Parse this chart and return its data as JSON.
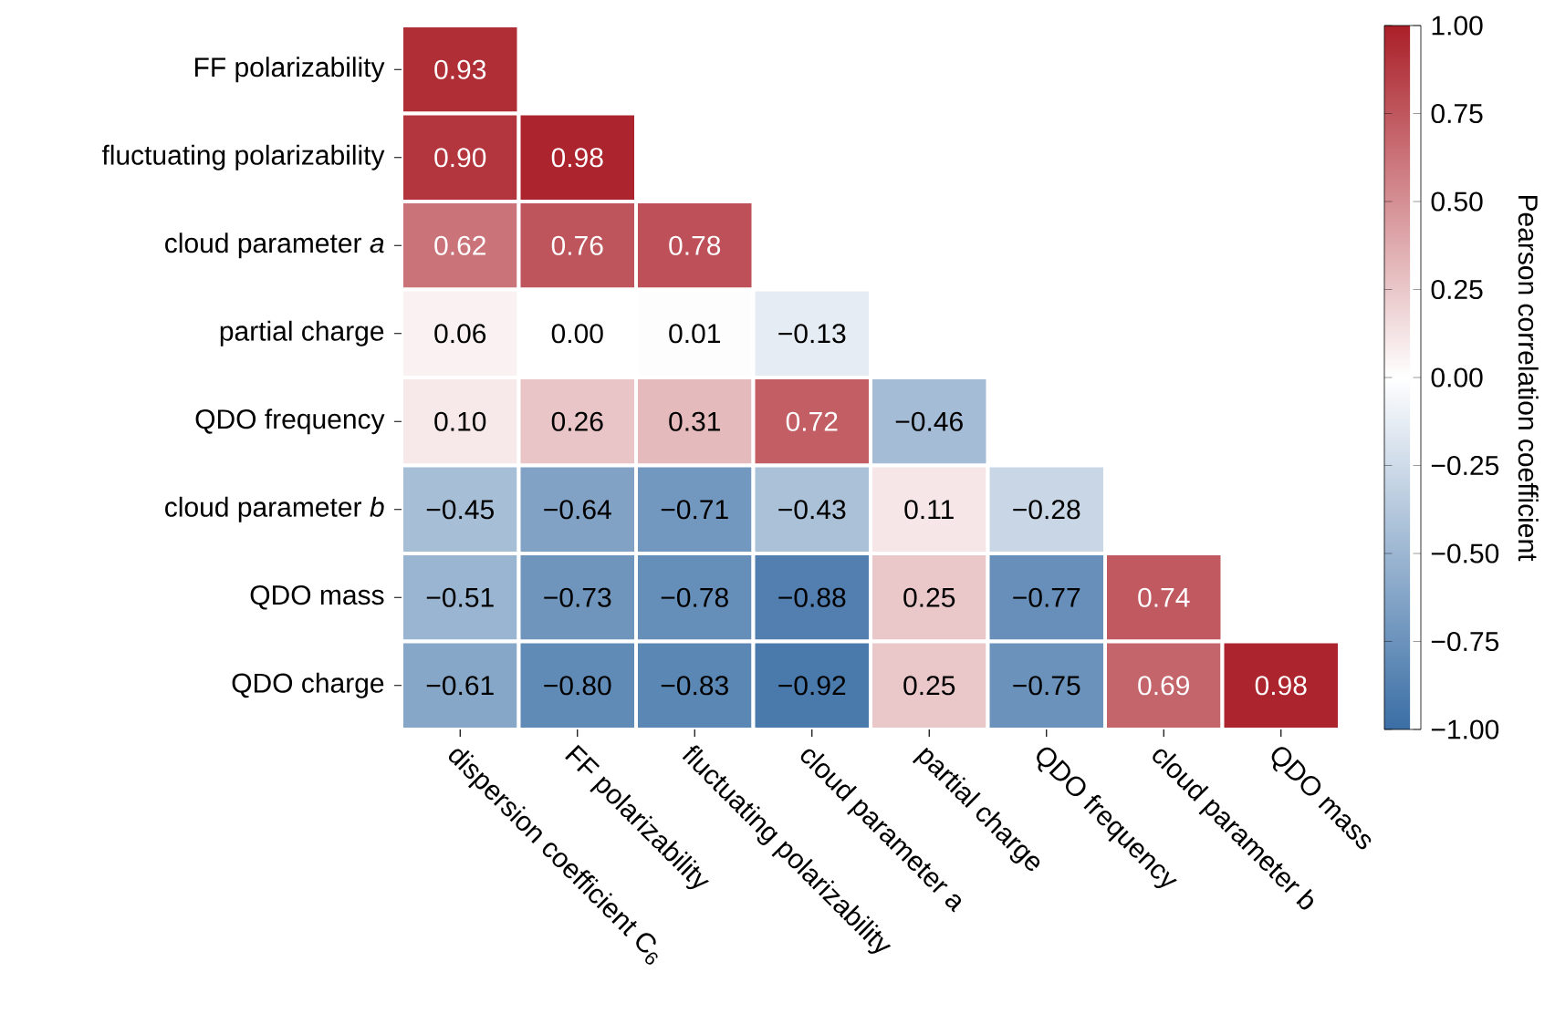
{
  "chart_data": {
    "type": "heatmap",
    "categories": [
      "dispersion coefficient C$_{6}$",
      "FF polarizability",
      "fluctuating polarizability",
      "cloud parameter a",
      "partial charge",
      "QDO frequency",
      "cloud parameter b",
      "QDO mass"
    ],
    "y_categories": [
      "FF polarizability",
      "fluctuating polarizability",
      "cloud parameter *a*",
      "partial charge",
      "QDO frequency",
      "cloud parameter *b*",
      "QDO mass",
      "QDO charge"
    ],
    "cells": [
      [
        0.93,
        null,
        null,
        null,
        null,
        null,
        null,
        null
      ],
      [
        0.9,
        0.98,
        null,
        null,
        null,
        null,
        null,
        null
      ],
      [
        0.62,
        0.76,
        0.78,
        null,
        null,
        null,
        null,
        null
      ],
      [
        0.06,
        0.0,
        0.01,
        -0.13,
        null,
        null,
        null,
        null
      ],
      [
        0.1,
        0.26,
        0.31,
        0.72,
        -0.46,
        null,
        null,
        null
      ],
      [
        -0.45,
        -0.64,
        -0.71,
        -0.43,
        0.11,
        -0.28,
        null,
        null
      ],
      [
        -0.51,
        -0.73,
        -0.78,
        -0.88,
        0.25,
        -0.77,
        0.74,
        null
      ],
      [
        -0.61,
        -0.8,
        -0.83,
        -0.92,
        0.25,
        -0.75,
        0.69,
        0.98
      ]
    ],
    "cell_labels": [
      [
        "0.93",
        null,
        null,
        null,
        null,
        null,
        null,
        null
      ],
      [
        "0.90",
        "0.98",
        null,
        null,
        null,
        null,
        null,
        null
      ],
      [
        "0.62",
        "0.76",
        "0.78",
        null,
        null,
        null,
        null,
        null
      ],
      [
        "0.06",
        "0.00",
        "0.01",
        "−0.13",
        null,
        null,
        null,
        null
      ],
      [
        "0.10",
        "0.26",
        "0.31",
        "0.72",
        "−0.46",
        null,
        null,
        null
      ],
      [
        "−0.45",
        "−0.64",
        "−0.71",
        "−0.43",
        "0.11",
        "−0.28",
        null,
        null
      ],
      [
        "−0.51",
        "−0.73",
        "−0.78",
        "−0.88",
        "0.25",
        "−0.77",
        "0.74",
        null
      ],
      [
        "−0.61",
        "−0.80",
        "−0.83",
        "−0.92",
        "0.25",
        "−0.75",
        "0.69",
        "0.98"
      ]
    ],
    "clim": [
      -1,
      1
    ],
    "cticks": [
      {
        "value": 1,
        "label": "1.00"
      },
      {
        "value": 0.75,
        "label": "0.75"
      },
      {
        "value": 0.5,
        "label": "0.50"
      },
      {
        "value": 0.25,
        "label": "0.25"
      },
      {
        "value": 0,
        "label": "0.00"
      },
      {
        "value": -0.25,
        "label": "−0.25"
      },
      {
        "value": -0.5,
        "label": "−0.50"
      },
      {
        "value": -0.75,
        "label": "−0.75"
      },
      {
        "value": -1,
        "label": "−1.00"
      }
    ],
    "clabel": "Pearson correlation coefficient"
  }
}
